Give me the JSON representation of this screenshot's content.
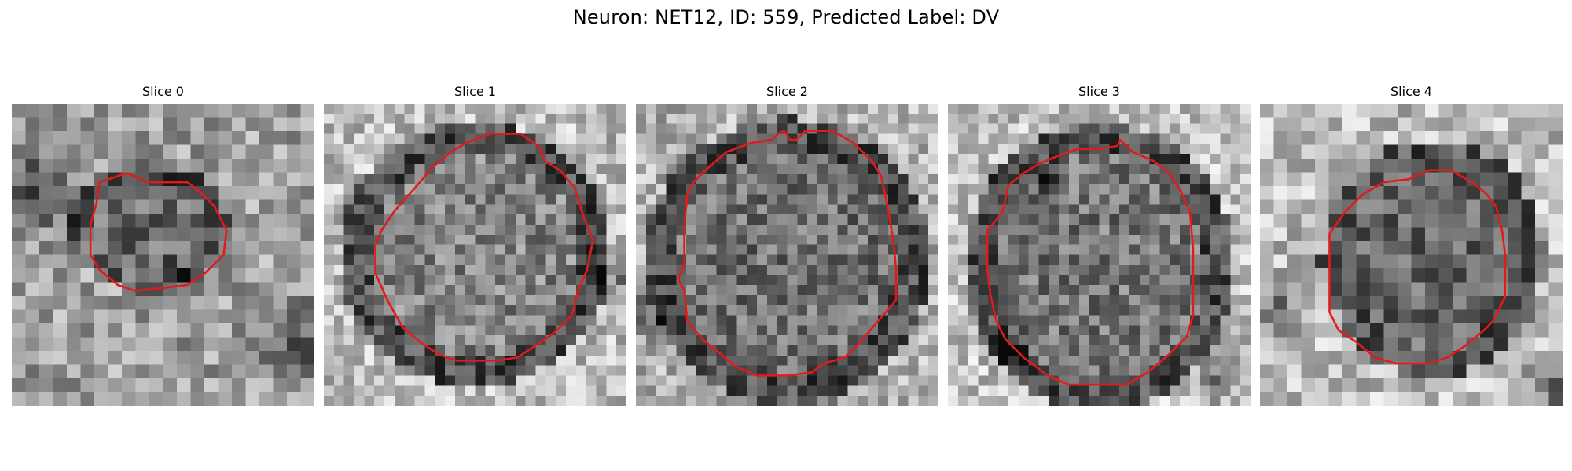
{
  "figure": {
    "title": "Neuron: NET12, ID: 559, Predicted Label: DV"
  },
  "panels": [
    {
      "title": "Slice 0"
    },
    {
      "title": "Slice 1"
    },
    {
      "title": "Slice 2"
    },
    {
      "title": "Slice 3"
    },
    {
      "title": "Slice 4"
    }
  ],
  "colors": {
    "contour": "#e31a1c",
    "background": "#ffffff"
  }
}
